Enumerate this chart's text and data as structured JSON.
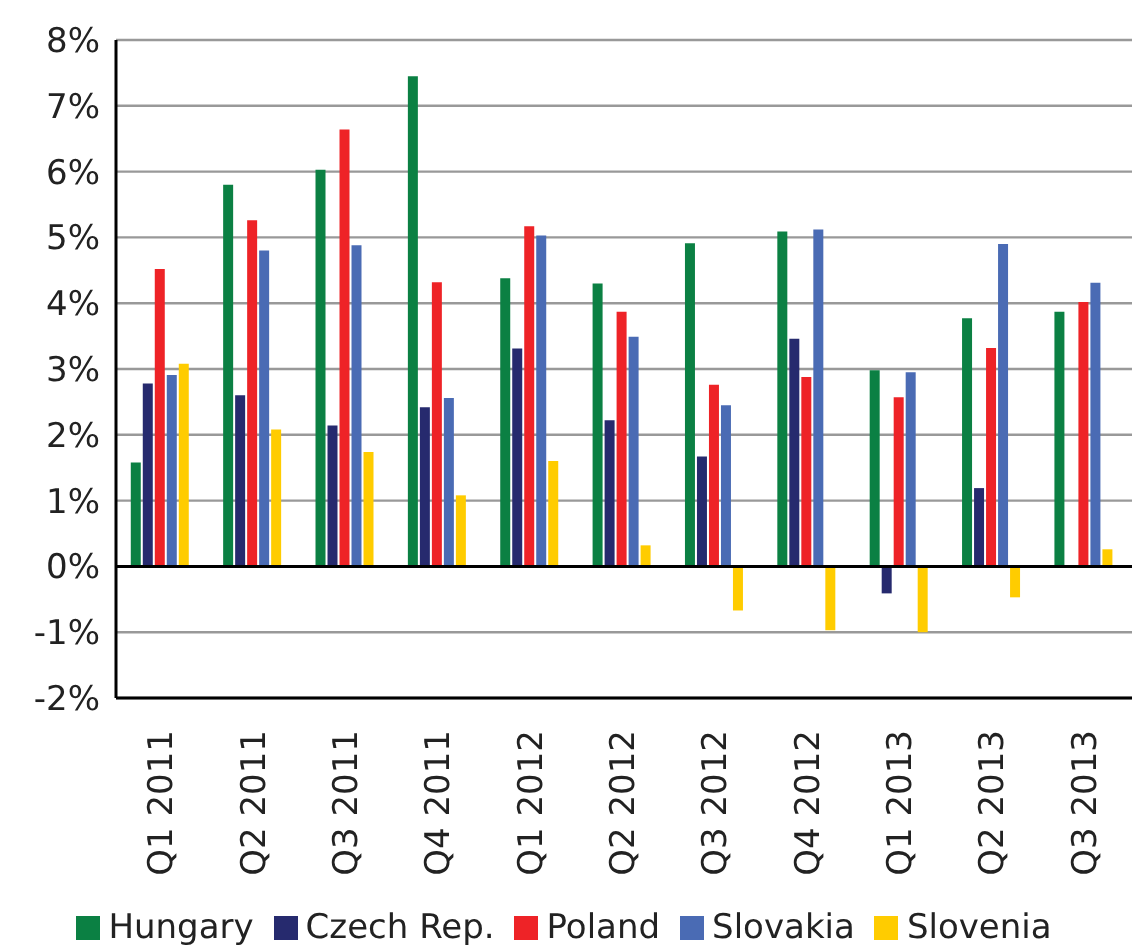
{
  "chart_data": {
    "type": "bar",
    "categories": [
      "Q1 2011",
      "Q2 2011",
      "Q3 2011",
      "Q4 2011",
      "Q1 2012",
      "Q2 2012",
      "Q3 2012",
      "Q4 2012",
      "Q1 2013",
      "Q2 2013",
      "Q3 2013"
    ],
    "series": [
      {
        "name": "Hungary",
        "color": "#0b8043",
        "values": [
          1.58,
          5.8,
          6.03,
          7.45,
          4.38,
          4.3,
          4.91,
          5.09,
          2.98,
          3.77,
          3.87
        ]
      },
      {
        "name": "Czech Rep.",
        "color": "#262a6e",
        "values": [
          2.78,
          2.6,
          2.14,
          2.42,
          3.31,
          2.22,
          1.67,
          3.46,
          -0.41,
          1.19,
          null
        ]
      },
      {
        "name": "Poland",
        "color": "#ee2327",
        "values": [
          4.52,
          5.26,
          6.64,
          4.32,
          5.17,
          3.87,
          2.76,
          2.88,
          2.57,
          3.32,
          4.02
        ]
      },
      {
        "name": "Slovakia",
        "color": "#4a6bb4",
        "values": [
          2.91,
          4.8,
          4.88,
          2.56,
          5.03,
          3.49,
          2.45,
          5.12,
          2.95,
          4.9,
          4.31
        ]
      },
      {
        "name": "Slovenia",
        "color": "#ffcc00",
        "values": [
          3.08,
          2.08,
          1.74,
          1.08,
          1.6,
          0.32,
          -0.67,
          -0.97,
          -1.0,
          -0.47,
          0.26
        ]
      }
    ],
    "ylim": [
      -2,
      8
    ],
    "yticks": [
      {
        "value": -2,
        "label": "-2%"
      },
      {
        "value": -1,
        "label": "-1%"
      },
      {
        "value": 0,
        "label": "0%"
      },
      {
        "value": 1,
        "label": "1%"
      },
      {
        "value": 2,
        "label": "2%"
      },
      {
        "value": 3,
        "label": "3%"
      },
      {
        "value": 4,
        "label": "4%"
      },
      {
        "value": 5,
        "label": "5%"
      },
      {
        "value": 6,
        "label": "6%"
      },
      {
        "value": 7,
        "label": "7%"
      },
      {
        "value": 8,
        "label": "8%"
      }
    ],
    "grid": "y",
    "legend": "bottom"
  }
}
